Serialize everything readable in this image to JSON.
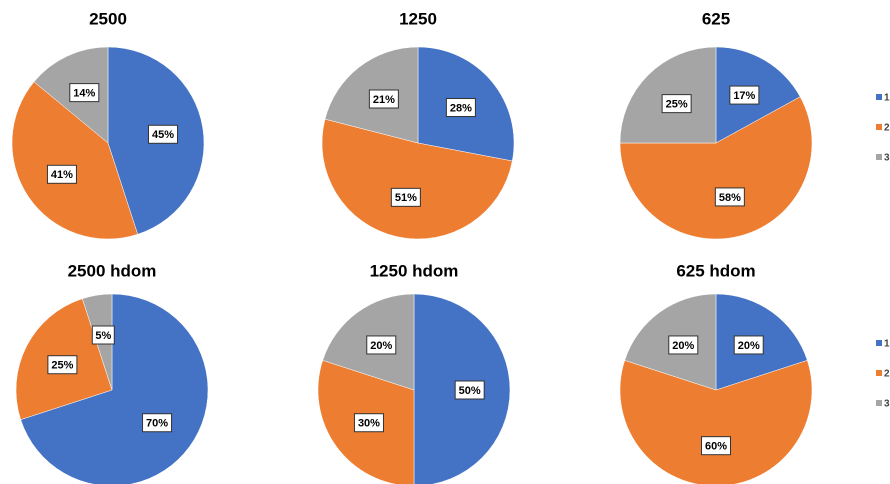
{
  "chart_data": [
    {
      "type": "pie",
      "title": "2500",
      "values": [
        45,
        41,
        14
      ],
      "value_labels": [
        "45%",
        "41%",
        "14%"
      ],
      "colors": [
        "#4472c4",
        "#ed7d31",
        "#a5a5a5"
      ]
    },
    {
      "type": "pie",
      "title": "1250",
      "values": [
        28,
        51,
        21
      ],
      "value_labels": [
        "28%",
        "51%",
        "21%"
      ],
      "colors": [
        "#4472c4",
        "#ed7d31",
        "#a5a5a5"
      ]
    },
    {
      "type": "pie",
      "title": "625",
      "values": [
        17,
        58,
        25
      ],
      "value_labels": [
        "17%",
        "58%",
        "25%"
      ],
      "colors": [
        "#4472c4",
        "#ed7d31",
        "#a5a5a5"
      ],
      "categories": [
        "1",
        "2",
        "3"
      ],
      "legend": "right"
    },
    {
      "type": "pie",
      "title": "2500 hdom",
      "values": [
        70,
        25,
        5
      ],
      "value_labels": [
        "70%",
        "25%",
        "5%"
      ],
      "colors": [
        "#4472c4",
        "#ed7d31",
        "#a5a5a5"
      ]
    },
    {
      "type": "pie",
      "title": "1250 hdom",
      "values": [
        50,
        30,
        20
      ],
      "value_labels": [
        "50%",
        "30%",
        "20%"
      ],
      "colors": [
        "#4472c4",
        "#ed7d31",
        "#a5a5a5"
      ]
    },
    {
      "type": "pie",
      "title": "625 hdom",
      "values": [
        20,
        60,
        20
      ],
      "value_labels": [
        "20%",
        "60%",
        "20%"
      ],
      "colors": [
        "#4472c4",
        "#ed7d31",
        "#a5a5a5"
      ],
      "categories": [
        "1",
        "2",
        "3"
      ],
      "legend": "right"
    }
  ]
}
